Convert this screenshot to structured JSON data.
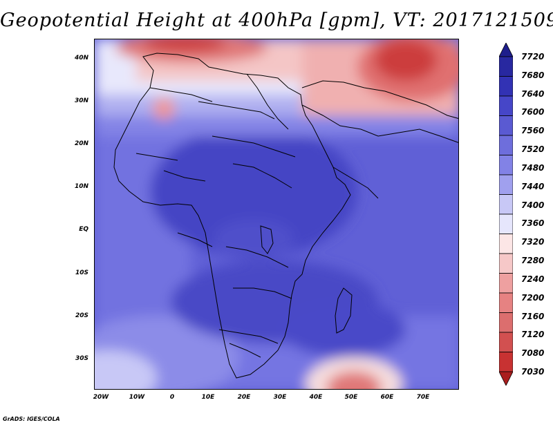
{
  "title": "Geopotential Height at 400hPa [gpm], VT: 2017121509",
  "credit": "GrADS: IGES/COLA",
  "map": {
    "variable": "Geopotential Height",
    "level": "400hPa",
    "units": "gpm",
    "valid_time": "2017121509",
    "lat_labels": [
      "40N",
      "30N",
      "20N",
      "10N",
      "EQ",
      "10S",
      "20S",
      "30S"
    ],
    "lon_labels": [
      "20W",
      "10W",
      "0",
      "10E",
      "20E",
      "30E",
      "40E",
      "50E",
      "60E",
      "70E"
    ]
  },
  "colorbar": {
    "labels": [
      "7720",
      "7680",
      "7640",
      "7600",
      "7560",
      "7520",
      "7480",
      "7440",
      "7400",
      "7360",
      "7320",
      "7280",
      "7240",
      "7200",
      "7160",
      "7120",
      "7080",
      "7030"
    ],
    "colors": [
      "#1e1e8c",
      "#2828a0",
      "#3232b4",
      "#4646c8",
      "#5a5ad2",
      "#6e6edc",
      "#8282e6",
      "#a0a0ee",
      "#c8c8f6",
      "#e6e6fc",
      "#fce6e6",
      "#f6c8c8",
      "#eea0a0",
      "#e68282",
      "#dc6e6e",
      "#d25050",
      "#c83232",
      "#aa1e1e"
    ]
  }
}
